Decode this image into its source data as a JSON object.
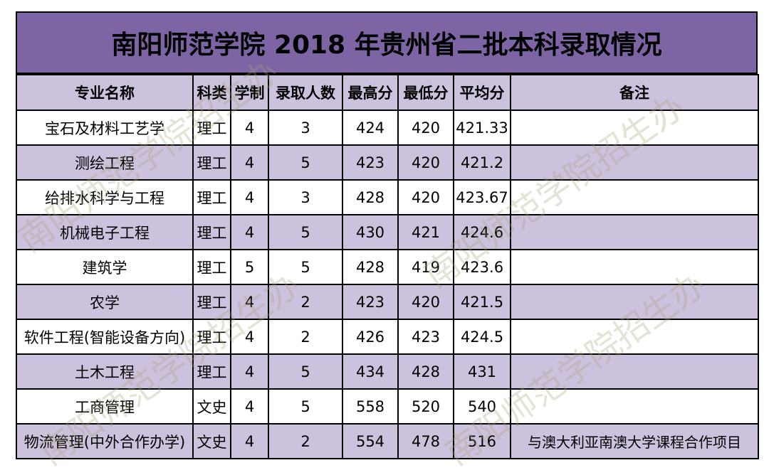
{
  "title": "南阳师范学院 2018 年贵州省二批本科录取情况",
  "headers": [
    "专业名称",
    "科类",
    "学制",
    "录取人数",
    "最高分",
    "最低分",
    "平均分",
    "备注"
  ],
  "rows": [
    {
      "name": "宝石及材料工艺学",
      "category": "理工",
      "years": "4",
      "count": "3",
      "max": "424",
      "min": "420",
      "avg": "421.33",
      "note": ""
    },
    {
      "name": "测绘工程",
      "category": "理工",
      "years": "4",
      "count": "5",
      "max": "423",
      "min": "420",
      "avg": "421.2",
      "note": ""
    },
    {
      "name": "给排水科学与工程",
      "category": "理工",
      "years": "4",
      "count": "3",
      "max": "428",
      "min": "420",
      "avg": "423.67",
      "note": ""
    },
    {
      "name": "机械电子工程",
      "category": "理工",
      "years": "4",
      "count": "5",
      "max": "430",
      "min": "421",
      "avg": "424.6",
      "note": ""
    },
    {
      "name": "建筑学",
      "category": "理工",
      "years": "5",
      "count": "5",
      "max": "428",
      "min": "419",
      "avg": "423.6",
      "note": ""
    },
    {
      "name": "农学",
      "category": "理工",
      "years": "4",
      "count": "2",
      "max": "423",
      "min": "420",
      "avg": "421.5",
      "note": ""
    },
    {
      "name": "软件工程(智能设备方向)",
      "category": "理工",
      "years": "4",
      "count": "2",
      "max": "426",
      "min": "423",
      "avg": "424.5",
      "note": ""
    },
    {
      "name": "土木工程",
      "category": "理工",
      "years": "4",
      "count": "5",
      "max": "434",
      "min": "428",
      "avg": "431",
      "note": ""
    },
    {
      "name": "工商管理",
      "category": "文史",
      "years": "4",
      "count": "5",
      "max": "558",
      "min": "520",
      "avg": "540",
      "note": ""
    },
    {
      "name": "物流管理(中外合作办学)",
      "category": "文史",
      "years": "4",
      "count": "2",
      "max": "554",
      "min": "478",
      "avg": "516",
      "note": "与澳大利亚南澳大学课程合作项目"
    }
  ],
  "watermark": "南阳师范学院招生办",
  "colors": {
    "title_bg": "#7d65a5",
    "band_bg": "#cdc2dd",
    "row_bg": "#ffffff"
  }
}
